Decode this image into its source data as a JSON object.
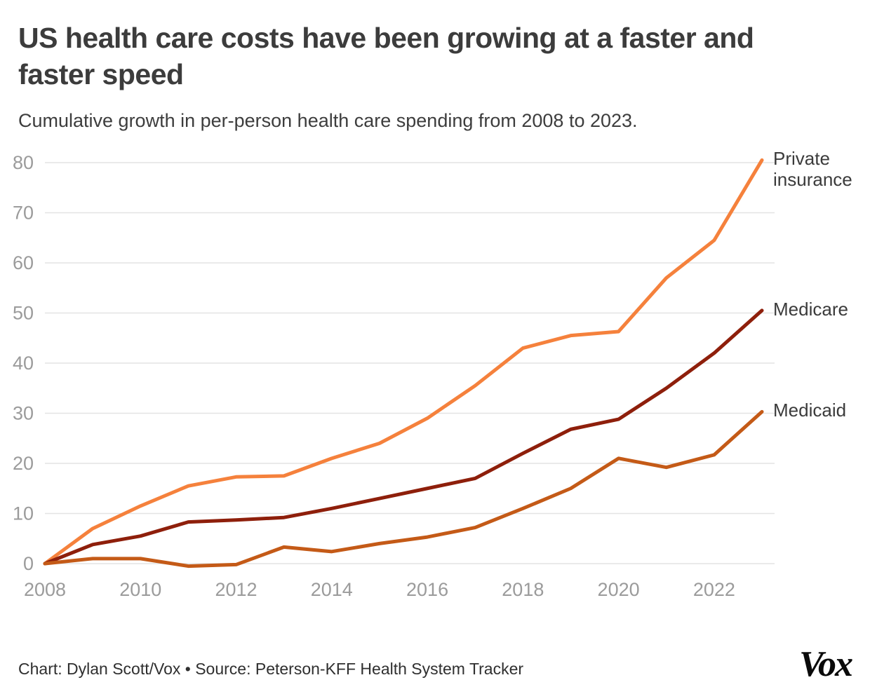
{
  "header": {
    "title": "US health care costs have been growing at a faster and faster speed",
    "subtitle": "Cumulative growth in per-person health care spending from 2008 to 2023."
  },
  "footer": {
    "credit": "Chart: Dylan Scott/Vox • Source: Peterson-KFF Health System Tracker",
    "logo": "Vox"
  },
  "chart_data": {
    "type": "line",
    "title": "US health care costs have been growing at a faster and faster speed",
    "subtitle": "Cumulative growth in per-person health care spending from 2008 to 2023.",
    "xlabel": "",
    "ylabel": "",
    "x": [
      2008,
      2009,
      2010,
      2011,
      2012,
      2013,
      2014,
      2015,
      2016,
      2017,
      2018,
      2019,
      2020,
      2021,
      2022,
      2023
    ],
    "xticks": [
      2008,
      2010,
      2012,
      2014,
      2016,
      2018,
      2020,
      2022
    ],
    "yticks": [
      0,
      10,
      20,
      30,
      40,
      50,
      60,
      70,
      80
    ],
    "ylim": [
      0,
      80
    ],
    "grid": "horizontal",
    "legend_position": "line-end-labels",
    "series": [
      {
        "name": "Private insurance",
        "color": "#F5813C",
        "values": [
          0,
          7,
          11.5,
          15.5,
          17.3,
          17.5,
          21,
          24,
          29,
          35.5,
          43,
          45.5,
          46.3,
          57,
          64.5,
          80.5
        ]
      },
      {
        "name": "Medicare",
        "color": "#8E1F0B",
        "values": [
          0,
          3.8,
          5.5,
          8.3,
          8.7,
          9.2,
          11,
          13,
          15,
          17,
          22,
          26.8,
          28.8,
          35,
          42,
          50.5
        ]
      },
      {
        "name": "Medicaid",
        "color": "#C45A17",
        "values": [
          0,
          1,
          1,
          -0.5,
          -0.2,
          3.3,
          2.4,
          4,
          5.3,
          7.2,
          11,
          15,
          21,
          19.2,
          21.7,
          30.3
        ]
      }
    ]
  }
}
